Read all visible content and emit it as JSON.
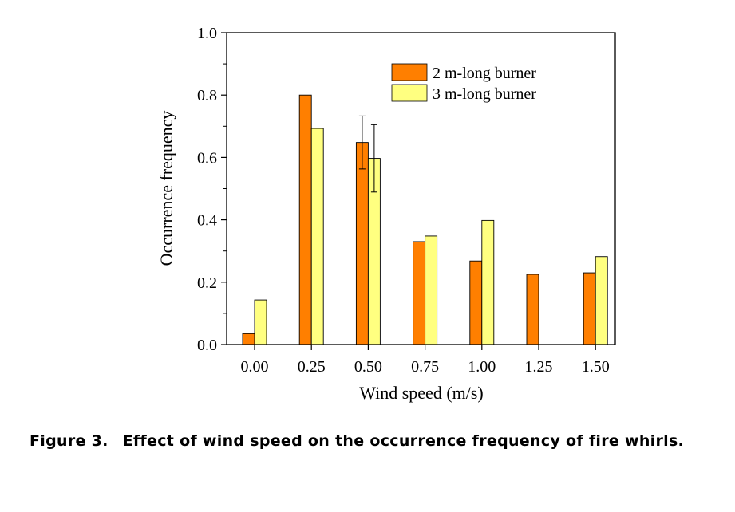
{
  "chart_data": {
    "type": "bar",
    "title": "",
    "xlabel": "Wind speed (m/s)",
    "ylabel": "Occurrence frequency",
    "categories": [
      "0.00",
      "0.25",
      "0.50",
      "0.75",
      "1.00",
      "1.25",
      "1.50"
    ],
    "ylim": [
      0.0,
      1.0
    ],
    "yticks": [
      "0.0",
      "0.2",
      "0.4",
      "0.6",
      "0.8",
      "1.0"
    ],
    "grid": false,
    "legend_position": "top-right",
    "series": [
      {
        "name": "2 m-long burner",
        "color": "#FF7F00",
        "values": [
          0.035,
          0.8,
          0.648,
          0.33,
          0.268,
          0.225,
          0.23
        ],
        "error": [
          null,
          null,
          0.085,
          null,
          null,
          null,
          null
        ]
      },
      {
        "name": "3 m-long burner",
        "color": "#FFFF80",
        "values": [
          0.143,
          0.693,
          0.597,
          0.348,
          0.398,
          null,
          0.282
        ],
        "error": [
          null,
          null,
          0.108,
          null,
          null,
          null,
          null
        ]
      }
    ]
  },
  "caption": {
    "number": "Figure 3.",
    "text": "Effect of wind speed on the occurrence frequency of fire whirls."
  }
}
